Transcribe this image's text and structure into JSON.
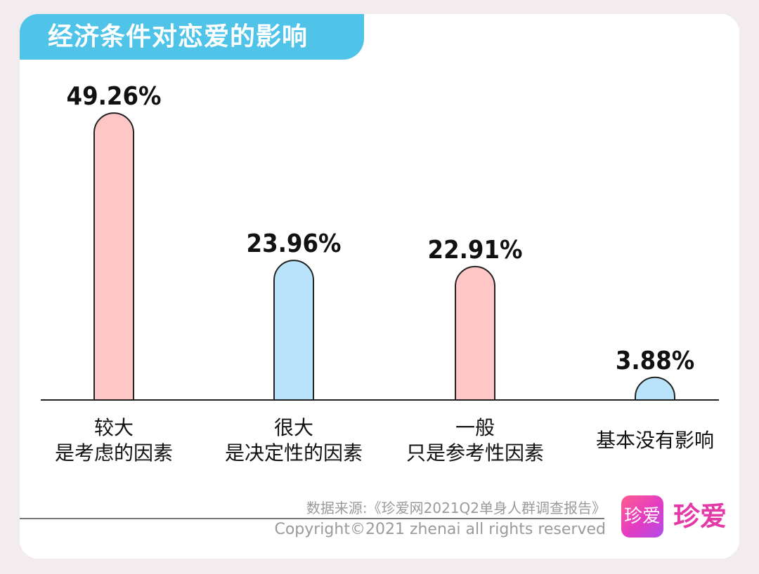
{
  "header": {
    "title": "经济条件对恋爱的影响"
  },
  "chart_data": {
    "type": "bar",
    "categories": [
      "较大\n是考虑的因素",
      "很大\n是决定性的因素",
      "一般\n只是参考性因素",
      "基本没有影响"
    ],
    "values": [
      49.26,
      23.96,
      22.91,
      3.88
    ],
    "value_labels": [
      "49.26%",
      "23.96%",
      "22.91%",
      "3.88%"
    ],
    "colors": [
      "#ffc6c6",
      "#b8e3fb",
      "#ffc6c6",
      "#b8e3fb"
    ],
    "unit": "%",
    "ylim": [
      0,
      55
    ],
    "grid": false,
    "legend": "none"
  },
  "footer": {
    "source": "数据来源:《珍爱网2021Q2单身人群调查报告》",
    "copyright": "Copyright©2021  zhenai  all rights reserved"
  },
  "brand": {
    "icon_text": "珍爱",
    "name": "珍爱",
    "color": "#e33aa8"
  }
}
